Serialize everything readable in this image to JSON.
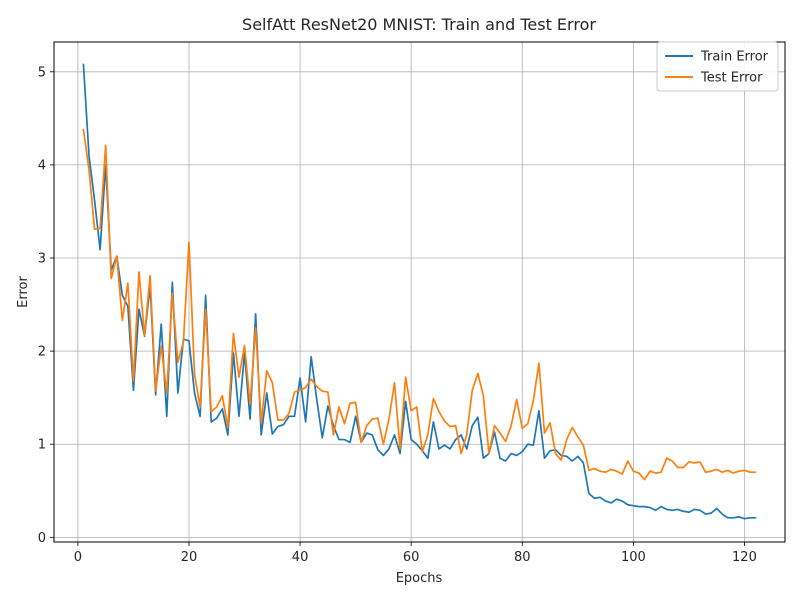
{
  "chart_data": {
    "type": "line",
    "title": "SelfAtt ResNet20 MNIST: Train and Test Error",
    "xlabel": "Epochs",
    "ylabel": "Error",
    "xlim": [
      -4.3,
      127.3
    ],
    "ylim": [
      -0.05,
      5.32
    ],
    "xticks": [
      0,
      20,
      40,
      60,
      80,
      100,
      120
    ],
    "yticks": [
      0,
      1,
      2,
      3,
      4,
      5
    ],
    "grid": true,
    "legend_position": "top-right",
    "x": [
      1,
      2,
      3,
      4,
      5,
      6,
      7,
      8,
      9,
      10,
      11,
      12,
      13,
      14,
      15,
      16,
      17,
      18,
      19,
      20,
      21,
      22,
      23,
      24,
      25,
      26,
      27,
      28,
      29,
      30,
      31,
      32,
      33,
      34,
      35,
      36,
      37,
      38,
      39,
      40,
      41,
      42,
      43,
      44,
      45,
      46,
      47,
      48,
      49,
      50,
      51,
      52,
      53,
      54,
      55,
      56,
      57,
      58,
      59,
      60,
      61,
      62,
      63,
      64,
      65,
      66,
      67,
      68,
      69,
      70,
      71,
      72,
      73,
      74,
      75,
      76,
      77,
      78,
      79,
      80,
      81,
      82,
      83,
      84,
      85,
      86,
      87,
      88,
      89,
      90,
      91,
      92,
      93,
      94,
      95,
      96,
      97,
      98,
      99,
      100,
      101,
      102,
      103,
      104,
      105,
      106,
      107,
      108,
      109,
      110,
      111,
      112,
      113,
      114,
      115,
      116,
      117,
      118,
      119,
      120,
      121,
      122
    ],
    "series": [
      {
        "name": "Train Error",
        "color": "#1f77b4",
        "values": [
          5.08,
          4.1,
          3.62,
          3.09,
          4.0,
          2.87,
          3.02,
          2.6,
          2.48,
          1.58,
          2.45,
          2.16,
          2.7,
          1.53,
          2.29,
          1.3,
          2.74,
          1.55,
          2.13,
          2.11,
          1.55,
          1.3,
          2.6,
          1.24,
          1.28,
          1.38,
          1.1,
          1.98,
          1.3,
          1.98,
          1.27,
          2.4,
          1.1,
          1.55,
          1.11,
          1.19,
          1.21,
          1.3,
          1.3,
          1.71,
          1.24,
          1.94,
          1.48,
          1.07,
          1.41,
          1.2,
          1.05,
          1.05,
          1.02,
          1.3,
          1.02,
          1.12,
          1.1,
          0.94,
          0.88,
          0.95,
          1.1,
          0.9,
          1.46,
          1.05,
          1.0,
          0.93,
          0.85,
          1.24,
          0.95,
          0.99,
          0.95,
          1.05,
          1.1,
          0.95,
          1.2,
          1.29,
          0.85,
          0.9,
          1.13,
          0.85,
          0.82,
          0.9,
          0.88,
          0.92,
          1.0,
          0.99,
          1.36,
          0.85,
          0.93,
          0.94,
          0.88,
          0.87,
          0.82,
          0.87,
          0.8,
          0.47,
          0.42,
          0.43,
          0.39,
          0.37,
          0.41,
          0.39,
          0.35,
          0.34,
          0.33,
          0.33,
          0.32,
          0.29,
          0.33,
          0.3,
          0.29,
          0.3,
          0.28,
          0.27,
          0.3,
          0.29,
          0.25,
          0.26,
          0.31,
          0.25,
          0.21,
          0.21,
          0.22,
          0.2,
          0.21,
          0.21
        ]
      },
      {
        "name": "Test Error",
        "color": "#ff7f0e",
        "values": [
          4.38,
          3.95,
          3.31,
          3.32,
          4.21,
          2.78,
          3.02,
          2.33,
          2.73,
          1.68,
          2.85,
          2.17,
          2.81,
          1.57,
          2.05,
          1.55,
          2.62,
          1.88,
          2.1,
          3.17,
          1.75,
          1.4,
          2.45,
          1.35,
          1.4,
          1.52,
          1.18,
          2.19,
          1.72,
          2.06,
          1.43,
          2.25,
          1.23,
          1.79,
          1.66,
          1.26,
          1.26,
          1.33,
          1.56,
          1.58,
          1.61,
          1.7,
          1.62,
          1.57,
          1.56,
          1.1,
          1.4,
          1.22,
          1.44,
          1.45,
          1.02,
          1.2,
          1.27,
          1.28,
          1.0,
          1.27,
          1.66,
          0.95,
          1.72,
          1.36,
          1.4,
          0.92,
          1.1,
          1.49,
          1.35,
          1.25,
          1.19,
          1.2,
          0.9,
          1.1,
          1.58,
          1.76,
          1.52,
          0.9,
          1.2,
          1.12,
          1.03,
          1.2,
          1.48,
          1.17,
          1.22,
          1.47,
          1.87,
          1.12,
          1.23,
          0.9,
          0.83,
          1.05,
          1.18,
          1.08,
          0.99,
          0.72,
          0.74,
          0.71,
          0.7,
          0.73,
          0.71,
          0.68,
          0.82,
          0.71,
          0.69,
          0.62,
          0.71,
          0.69,
          0.7,
          0.85,
          0.82,
          0.75,
          0.75,
          0.81,
          0.8,
          0.81,
          0.7,
          0.71,
          0.73,
          0.7,
          0.72,
          0.69,
          0.71,
          0.72,
          0.7,
          0.7
        ]
      }
    ]
  }
}
